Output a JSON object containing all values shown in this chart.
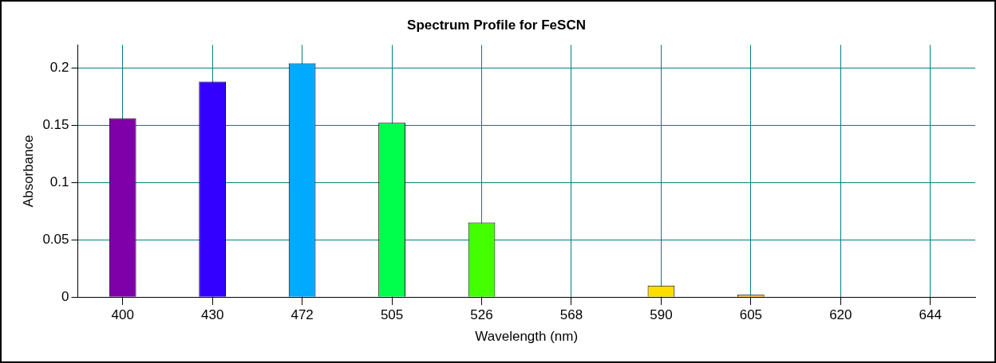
{
  "chart_data": {
    "type": "bar",
    "title": "Spectrum Profile for FeSCN",
    "xlabel": "Wavelength (nm)",
    "ylabel": "Absorbance",
    "categories": [
      "400",
      "430",
      "472",
      "505",
      "526",
      "568",
      "590",
      "605",
      "620",
      "644"
    ],
    "values": [
      0.156,
      0.188,
      0.204,
      0.152,
      0.065,
      0,
      0.01,
      0.002,
      0,
      0
    ],
    "colors": [
      "#7f00a8",
      "#3300ff",
      "#00aaff",
      "#00ff4c",
      "#44ff00",
      "#ddff00",
      "#ffdd00",
      "#ffaa00",
      "#ff7700",
      "#ff1500"
    ],
    "ylim": [
      0,
      0.22
    ],
    "yticks": [
      0,
      0.05,
      0.1,
      0.15,
      0.2
    ],
    "grid": true,
    "legend": false
  }
}
